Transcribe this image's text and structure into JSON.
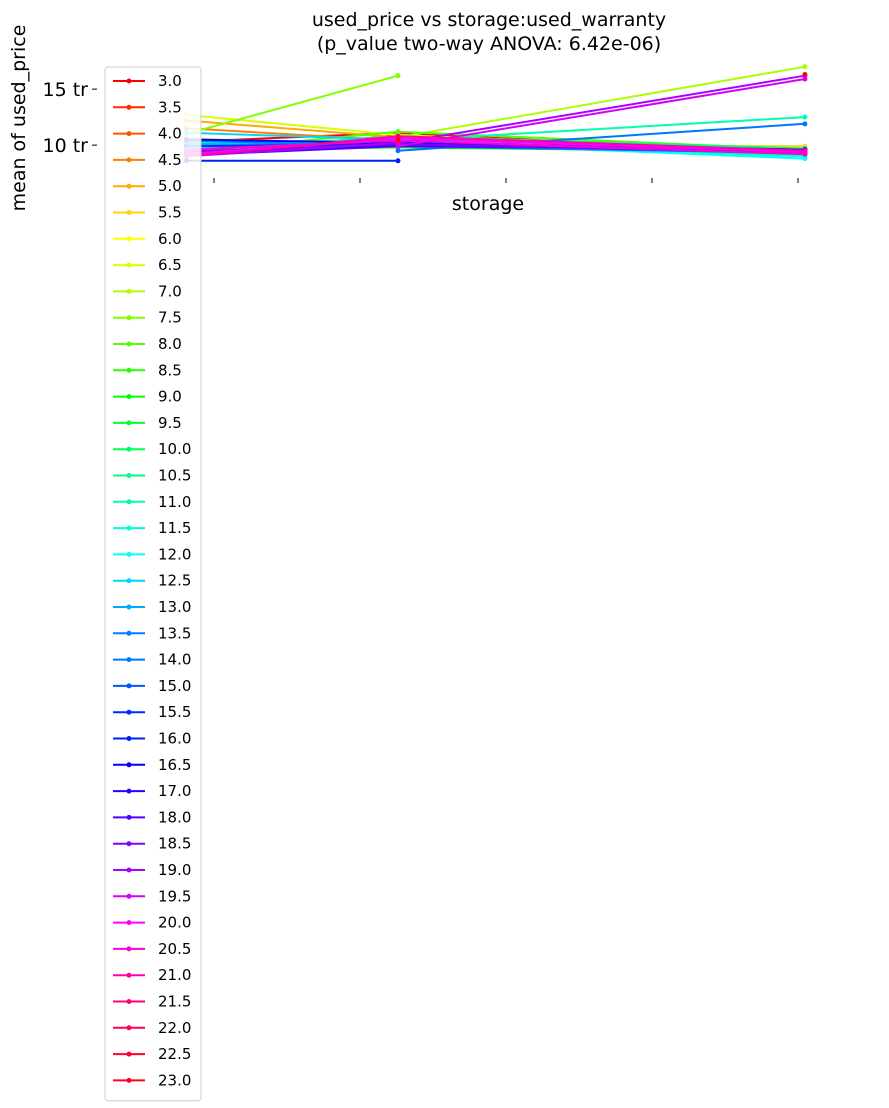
{
  "chart_data": {
    "type": "line",
    "title": [
      "used_price vs storage:used_warranty",
      "(p_value two-way ANOVA: 6.42e-06)"
    ],
    "xlabel": "storage",
    "ylabel": "mean of used_price",
    "x_ticks": [
      "",
      "",
      "",
      "",
      ""
    ],
    "x_positions": [
      1,
      2,
      3,
      4,
      5
    ],
    "y_ticks": [
      10,
      15
    ],
    "y_tick_labels": [
      "10 tr",
      "15 tr"
    ],
    "ylim": [
      7.6,
      17.6
    ],
    "xlim": [
      0.8,
      5.5
    ],
    "grid": false,
    "legend": {
      "placement": "upper-left"
    },
    "series": [
      {
        "name": "3.0",
        "color": "#ff0000",
        "x": [
          1.3,
          2.6,
          5.1
        ],
        "y": [
          10.3,
          11.1,
          9.2
        ]
      },
      {
        "name": "3.5",
        "color": "#ff2a00",
        "x": [
          1.3,
          2.6,
          5.1
        ],
        "y": [
          9.0,
          10.9,
          9.4
        ]
      },
      {
        "name": "4.0",
        "color": "#ff5500",
        "x": [
          1.3,
          2.6,
          5.1
        ],
        "y": [
          9.3,
          10.0,
          9.6
        ]
      },
      {
        "name": "4.5",
        "color": "#ff8000",
        "x": [
          1.3,
          2.6,
          5.1
        ],
        "y": [
          11.5,
          10.4,
          9.0
        ]
      },
      {
        "name": "5.0",
        "color": "#ffaa00",
        "x": [
          1.3,
          2.6,
          5.1
        ],
        "y": [
          12.2,
          10.7,
          9.2
        ]
      },
      {
        "name": "5.5",
        "color": "#ffd400",
        "x": [
          1.3,
          2.6,
          5.1
        ],
        "y": [
          10.6,
          10.0,
          9.9
        ]
      },
      {
        "name": "6.0",
        "color": "#ffff00",
        "x": [
          1.3,
          2.6,
          5.1
        ],
        "y": [
          9.8,
          10.2,
          9.7
        ]
      },
      {
        "name": "6.5",
        "color": "#d4ff00",
        "x": [
          1.3,
          2.6,
          5.1
        ],
        "y": [
          12.7,
          10.9,
          9.4
        ]
      },
      {
        "name": "7.0",
        "color": "#aaff00",
        "x": [
          1.3,
          2.6,
          5.1
        ],
        "y": [
          9.6,
          10.7,
          17.0
        ]
      },
      {
        "name": "7.5",
        "color": "#80ff00",
        "x": [
          1.3,
          2.6
        ],
        "y": [
          11.0,
          16.2
        ]
      },
      {
        "name": "8.0",
        "color": "#55ff00",
        "x": [
          1.3,
          2.6,
          5.1
        ],
        "y": [
          9.4,
          11.2,
          9.6
        ]
      },
      {
        "name": "8.5",
        "color": "#2aff00",
        "x": [
          1.3,
          2.6,
          5.1
        ],
        "y": [
          9.2,
          10.5,
          9.5
        ]
      },
      {
        "name": "9.0",
        "color": "#00ff00",
        "x": [
          1.3,
          2.6,
          5.1
        ],
        "y": [
          9.5,
          9.8,
          9.4
        ]
      },
      {
        "name": "9.5",
        "color": "#00ff2a",
        "x": [
          1.3,
          2.6,
          5.1
        ],
        "y": [
          9.7,
          10.3,
          9.5
        ]
      },
      {
        "name": "10.0",
        "color": "#00ff55",
        "x": [
          1.3,
          2.6,
          5.1
        ],
        "y": [
          9.9,
          10.6,
          9.3
        ]
      },
      {
        "name": "10.5",
        "color": "#00ff80",
        "x": [
          1.3,
          2.6,
          5.1
        ],
        "y": [
          9.5,
          10.8,
          9.7
        ]
      },
      {
        "name": "11.0",
        "color": "#00ffaa",
        "x": [
          1.3,
          2.6,
          5.1
        ],
        "y": [
          10.2,
          10.4,
          12.5
        ]
      },
      {
        "name": "11.5",
        "color": "#00ffd4",
        "x": [
          1.3,
          2.6,
          5.1
        ],
        "y": [
          9.8,
          10.1,
          9.0
        ]
      },
      {
        "name": "12.0",
        "color": "#00ffff",
        "x": [
          1.3,
          2.6,
          5.1
        ],
        "y": [
          10.0,
          10.3,
          8.8
        ]
      },
      {
        "name": "12.5",
        "color": "#00d4ff",
        "x": [
          1.3,
          2.6,
          5.1
        ],
        "y": [
          11.1,
          10.5,
          9.2
        ]
      },
      {
        "name": "13.0",
        "color": "#00aaff",
        "x": [
          1.3,
          2.6,
          5.1
        ],
        "y": [
          10.1,
          10.0,
          9.5
        ]
      },
      {
        "name": "13.5",
        "color": "#0080ff",
        "x": [
          1.3,
          2.6,
          5.1
        ],
        "y": [
          10.4,
          9.9,
          9.3
        ]
      },
      {
        "name": "14.0",
        "color": "#0077ff",
        "x": [
          2.6,
          5.1
        ],
        "y": [
          9.5,
          11.9
        ]
      },
      {
        "name": "15.0",
        "color": "#0055ff",
        "x": [
          1.3,
          2.6,
          5.1
        ],
        "y": [
          9.6,
          10.3,
          9.2
        ]
      },
      {
        "name": "15.5",
        "color": "#002aff",
        "x": [
          1.3,
          2.6,
          5.1
        ],
        "y": [
          9.9,
          10.1,
          9.4
        ]
      },
      {
        "name": "16.0",
        "color": "#0022ee",
        "x": [
          1.3,
          2.6
        ],
        "y": [
          8.6,
          8.6
        ]
      },
      {
        "name": "16.5",
        "color": "#0000ff",
        "x": [
          1.3,
          2.6,
          5.1
        ],
        "y": [
          10.5,
          10.2,
          9.6
        ]
      },
      {
        "name": "17.0",
        "color": "#2a00ff",
        "x": [
          1.3,
          2.6,
          5.1
        ],
        "y": [
          9.3,
          10.0,
          9.5
        ]
      },
      {
        "name": "18.0",
        "color": "#5500ff",
        "x": [
          1.3,
          2.6,
          5.1
        ],
        "y": [
          9.1,
          9.9,
          9.6
        ]
      },
      {
        "name": "18.5",
        "color": "#8000ff",
        "x": [
          1.3,
          2.6,
          5.1
        ],
        "y": [
          9.4,
          10.1,
          9.3
        ]
      },
      {
        "name": "19.0",
        "color": "#aa00ff",
        "x": [
          1.3,
          2.6,
          5.1
        ],
        "y": [
          9.0,
          10.2,
          16.2
        ]
      },
      {
        "name": "19.5",
        "color": "#d400ff",
        "x": [
          2.6,
          5.1
        ],
        "y": [
          9.9,
          15.9
        ]
      },
      {
        "name": "20.0",
        "color": "#ff00ff",
        "x": [
          1.3,
          2.6,
          5.1
        ],
        "y": [
          9.2,
          10.6,
          9.4
        ]
      },
      {
        "name": "20.5",
        "color": "#ff00d4",
        "x": [
          1.3,
          2.6,
          5.1
        ],
        "y": [
          9.6,
          10.4,
          9.2
        ]
      },
      {
        "name": "21.0",
        "color": "#ff00aa",
        "x": [
          1.3,
          2.6,
          5.1
        ],
        "y": [
          9.0,
          10.8,
          9.5
        ]
      },
      {
        "name": "21.5",
        "color": "#ff0080",
        "x": [
          2.6
        ],
        "y": [
          10.3
        ]
      },
      {
        "name": "22.0",
        "color": "#ff0055",
        "x": [
          2.6
        ],
        "y": [
          10.7
        ]
      },
      {
        "name": "22.5",
        "color": "#ff002a",
        "x": [
          2.6
        ],
        "y": [
          10.5
        ]
      },
      {
        "name": "23.0",
        "color": "#ff0022",
        "x": [
          5.1
        ],
        "y": [
          16.3
        ]
      }
    ]
  }
}
